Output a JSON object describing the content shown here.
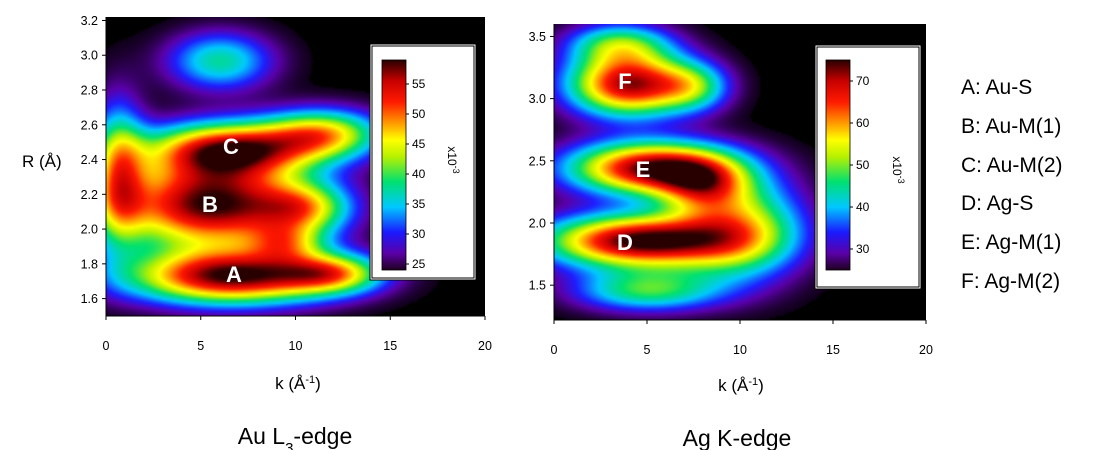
{
  "chart_data": [
    {
      "type": "heatmap",
      "title": "Au L3-edge",
      "title_parts": {
        "base": "Au L",
        "sub": "3",
        "rest": "-edge"
      },
      "xlabel": "k (Å-1)",
      "xlabel_parts": {
        "base": "k (Å",
        "sup": "-1",
        "rest": ")"
      },
      "ylabel": "R (Å)",
      "xlim": [
        0,
        20
      ],
      "ylim": [
        1.5,
        3.22
      ],
      "xticks": [
        "0",
        "5",
        "10",
        "15",
        "20"
      ],
      "yticks": [
        "1.6",
        "1.8",
        "2.0",
        "2.2",
        "2.4",
        "2.6",
        "2.8",
        "3.0",
        "3.2"
      ],
      "colorbar": {
        "range": [
          24,
          59
        ],
        "ticks": [
          "25",
          "30",
          "35",
          "40",
          "45",
          "50",
          "55"
        ],
        "multiplier": "x10-3"
      },
      "peaks": [
        {
          "label": "A",
          "k": 6.8,
          "R": 1.72,
          "intensity": 54
        },
        {
          "label": "B",
          "k": 5.5,
          "R": 2.14,
          "intensity": 58
        },
        {
          "label": "C",
          "k": 6.5,
          "R": 2.46,
          "intensity": 55
        }
      ],
      "grid": false
    },
    {
      "type": "heatmap",
      "title": "Ag K-edge",
      "xlabel": "k (Å-1)",
      "xlabel_parts": {
        "base": "k (Å",
        "sup": "-1",
        "rest": ")"
      },
      "ylabel": "",
      "xlim": [
        0,
        20
      ],
      "ylim": [
        1.22,
        3.6
      ],
      "xticks": [
        "0",
        "5",
        "10",
        "15",
        "20"
      ],
      "yticks": [
        "1.5",
        "2.0",
        "2.5",
        "3.0",
        "3.5"
      ],
      "colorbar": {
        "range": [
          25,
          75
        ],
        "ticks": [
          "30",
          "40",
          "50",
          "60",
          "70"
        ],
        "multiplier": "x10-3"
      },
      "peaks": [
        {
          "label": "D",
          "k": 4.5,
          "R": 1.84,
          "intensity": 74
        },
        {
          "label": "E",
          "k": 5.0,
          "R": 2.44,
          "intensity": 72
        },
        {
          "label": "F",
          "k": 4.0,
          "R": 3.13,
          "intensity": 70
        }
      ],
      "grid": false
    }
  ],
  "legend": [
    "A: Au-S",
    "B: Au-M(1)",
    "C: Au-M(2)",
    "D: Ag-S",
    "E: Ag-M(1)",
    "F: Ag-M(2)"
  ]
}
